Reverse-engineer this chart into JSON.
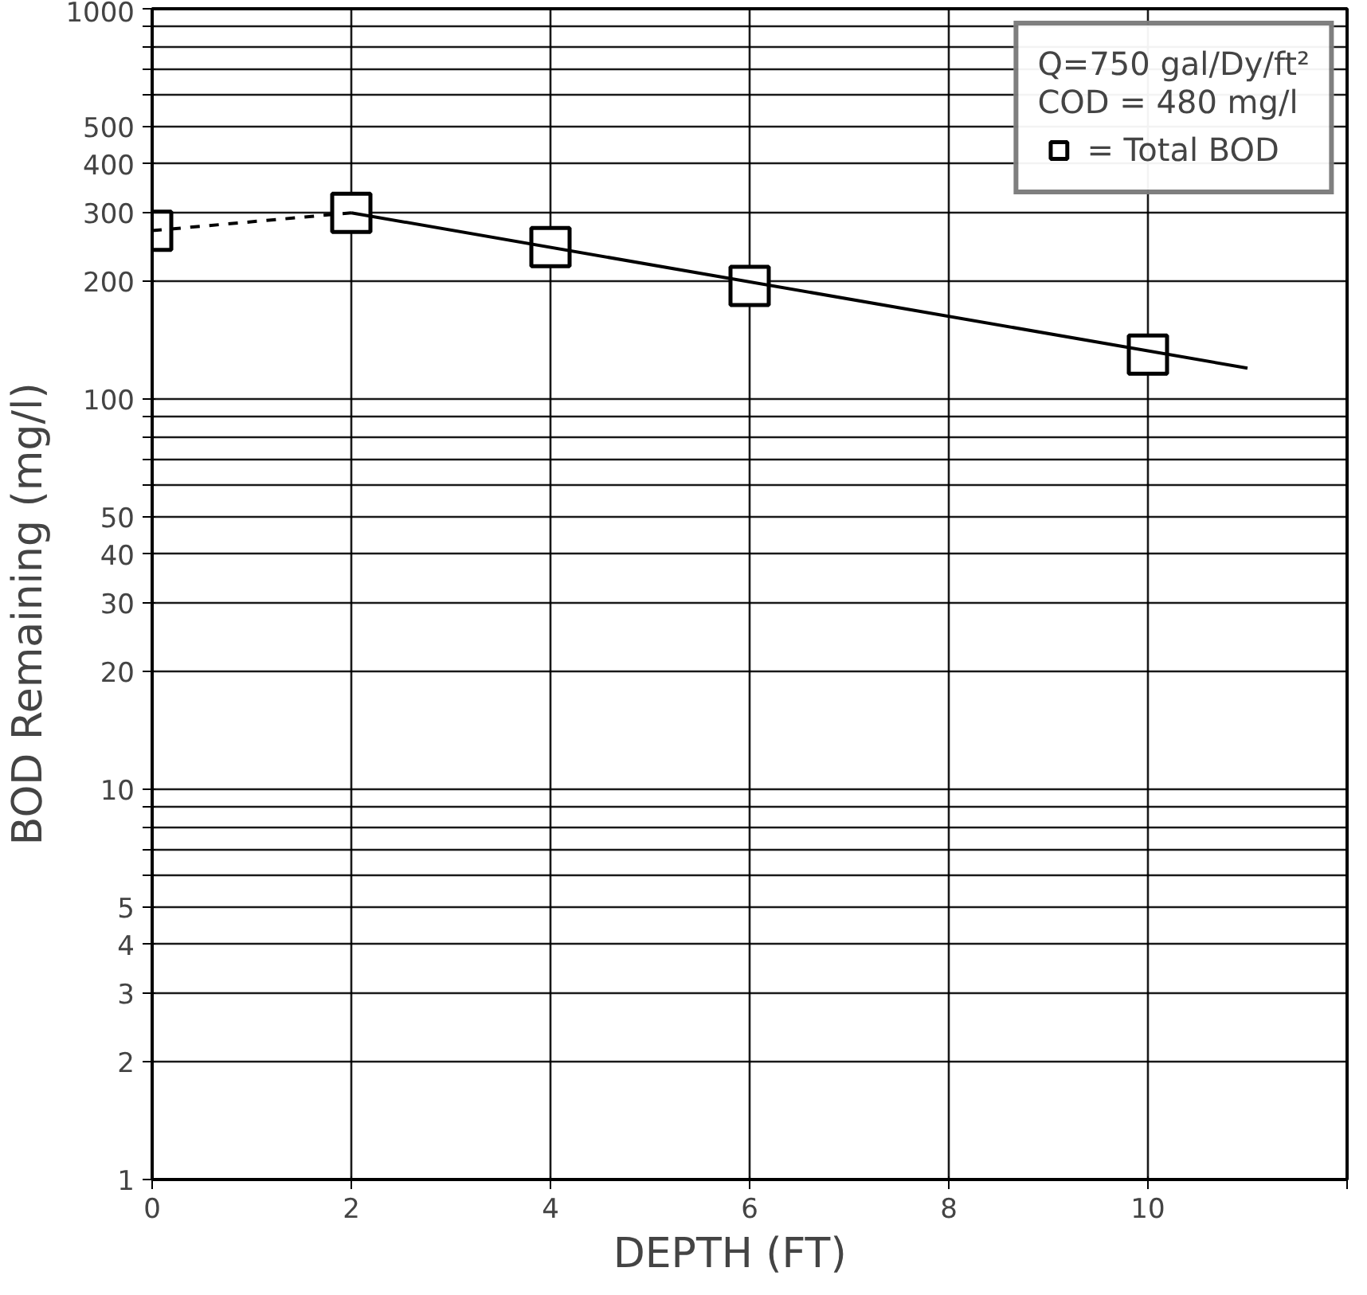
{
  "chart_data": {
    "type": "scatter",
    "xlabel": "DEPTH    (FT)",
    "ylabel": "BOD  Remaining   (mg/l)",
    "x": [
      0,
      2,
      4,
      6,
      10
    ],
    "series": [
      {
        "name": "= Total BOD",
        "color": "#000000",
        "values": [
          270,
          300,
          245,
          195,
          130
        ],
        "marker": "square"
      },
      {
        "type": "line",
        "x": [
          0,
          2
        ],
        "values": [
          270,
          300
        ],
        "color": "#000000",
        "line_style": "dashed",
        "marker": "none"
      },
      {
        "type": "line",
        "x": [
          2,
          11
        ],
        "values": [
          300,
          120
        ],
        "color": "#000000",
        "line_style": "solid",
        "marker": "none"
      }
    ],
    "annotations": [
      "Q=750 gal/Dy/ft²",
      "COD = 480 mg/l"
    ],
    "log": "y",
    "xlim": [
      0,
      12
    ],
    "ylim": [
      1,
      1000
    ],
    "xticks": [
      0,
      2,
      4,
      6,
      8,
      10,
      {
        "value": 12,
        "label": null
      }
    ],
    "yticks": [
      1,
      2,
      3,
      4,
      5,
      {
        "value": 6,
        "label": null
      },
      {
        "value": 7,
        "label": null
      },
      {
        "value": 8,
        "label": null
      },
      {
        "value": 9,
        "label": null
      },
      10,
      20,
      30,
      40,
      50,
      {
        "value": 60,
        "label": null
      },
      {
        "value": 70,
        "label": null
      },
      {
        "value": 80,
        "label": null
      },
      {
        "value": 90,
        "label": null
      },
      100,
      200,
      300,
      400,
      500,
      {
        "value": 600,
        "label": null
      },
      {
        "value": 700,
        "label": null
      },
      {
        "value": 800,
        "label": null
      },
      {
        "value": 900,
        "label": null
      },
      1000
    ],
    "grid": true,
    "legend": "top right"
  }
}
